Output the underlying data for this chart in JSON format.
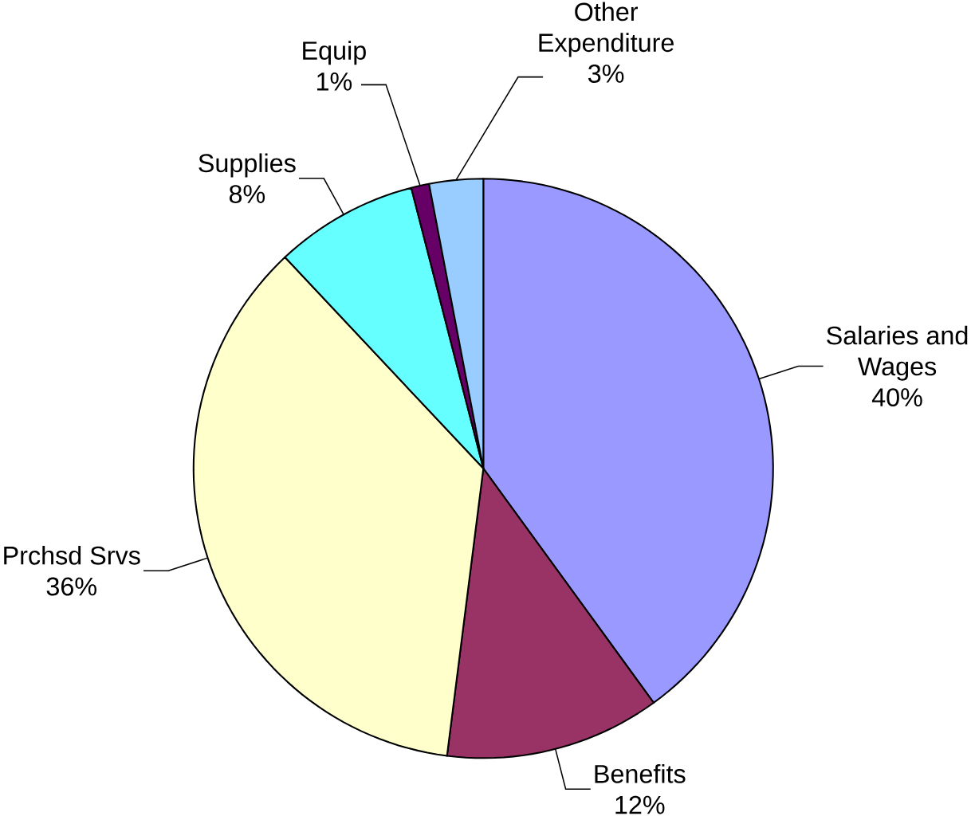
{
  "chart_data": {
    "type": "pie",
    "categories": [
      "Salaries and Wages",
      "Benefits",
      "Prchsd Srvs",
      "Supplies",
      "Equip",
      "Other Expenditure"
    ],
    "values": [
      40,
      12,
      36,
      8,
      1,
      3
    ],
    "value_labels": [
      "40%",
      "12%",
      "36%",
      "8%",
      "1%",
      "3%"
    ],
    "colors": [
      "#9999ff",
      "#993366",
      "#ffffcc",
      "#66ffff",
      "#660066",
      "#99ccff"
    ]
  }
}
